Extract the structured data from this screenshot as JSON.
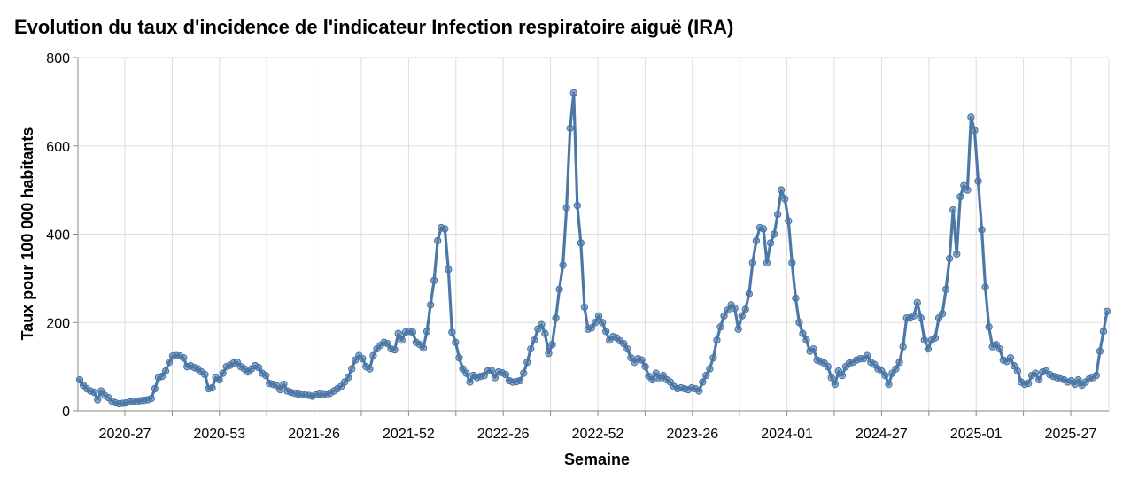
{
  "chart_data": {
    "type": "line",
    "title": "Evolution du taux d'incidence de l'indicateur Infection respiratoire aiguë (IRA)",
    "xlabel": "Semaine",
    "ylabel": "Taux pour 100 000 habitants",
    "ylim": [
      0,
      800
    ],
    "yticks": [
      0,
      200,
      400,
      600,
      800
    ],
    "xticks": [
      "2020-27",
      "2020-53",
      "2021-26",
      "2021-52",
      "2022-26",
      "2022-52",
      "2023-26",
      "2024-01",
      "2024-27",
      "2025-01",
      "2025-27"
    ],
    "grid": true,
    "line_color": "#4c78a8",
    "series": [
      {
        "name": "IRA",
        "values": [
          70,
          58,
          50,
          45,
          42,
          25,
          45,
          35,
          30,
          22,
          18,
          16,
          17,
          18,
          20,
          22,
          21,
          23,
          24,
          25,
          28,
          50,
          75,
          78,
          90,
          110,
          124,
          125,
          124,
          120,
          100,
          102,
          98,
          95,
          88,
          82,
          50,
          52,
          75,
          70,
          85,
          100,
          103,
          108,
          110,
          100,
          95,
          88,
          95,
          102,
          98,
          85,
          80,
          62,
          60,
          57,
          48,
          60,
          45,
          42,
          40,
          38,
          36,
          36,
          35,
          33,
          36,
          38,
          37,
          36,
          40,
          45,
          50,
          55,
          65,
          75,
          95,
          115,
          125,
          118,
          100,
          95,
          125,
          140,
          148,
          155,
          152,
          140,
          138,
          175,
          160,
          178,
          180,
          178,
          155,
          150,
          142,
          180,
          240,
          295,
          385,
          415,
          412,
          320,
          178,
          155,
          120,
          95,
          85,
          65,
          80,
          75,
          78,
          80,
          90,
          92,
          75,
          88,
          86,
          82,
          68,
          65,
          66,
          68,
          85,
          110,
          140,
          160,
          185,
          195,
          175,
          130,
          150,
          210,
          275,
          330,
          460,
          640,
          720,
          465,
          380,
          235,
          185,
          188,
          200,
          215,
          200,
          180,
          160,
          168,
          165,
          158,
          152,
          140,
          120,
          110,
          118,
          115,
          100,
          78,
          70,
          85,
          72,
          80,
          70,
          65,
          55,
          50,
          52,
          50,
          48,
          52,
          50,
          45,
          65,
          80,
          95,
          120,
          160,
          190,
          215,
          228,
          240,
          232,
          185,
          215,
          230,
          265,
          335,
          385,
          415,
          412,
          335,
          380,
          400,
          445,
          500,
          480,
          430,
          335,
          255,
          200,
          175,
          160,
          135,
          140,
          115,
          112,
          108,
          100,
          75,
          60,
          90,
          80,
          100,
          108,
          110,
          115,
          118,
          118,
          125,
          110,
          105,
          95,
          90,
          80,
          60,
          85,
          95,
          110,
          145,
          210,
          210,
          215,
          245,
          210,
          160,
          140,
          160,
          165,
          210,
          220,
          275,
          345,
          455,
          355,
          485,
          510,
          500,
          665,
          635,
          520,
          410,
          280,
          190,
          145,
          150,
          140,
          115,
          112,
          120,
          102,
          90,
          65,
          60,
          62,
          80,
          85,
          70,
          88,
          90,
          82,
          78,
          75,
          72,
          70,
          65,
          68,
          60,
          70,
          58,
          65,
          72,
          75,
          80,
          135,
          180,
          225
        ]
      }
    ]
  }
}
